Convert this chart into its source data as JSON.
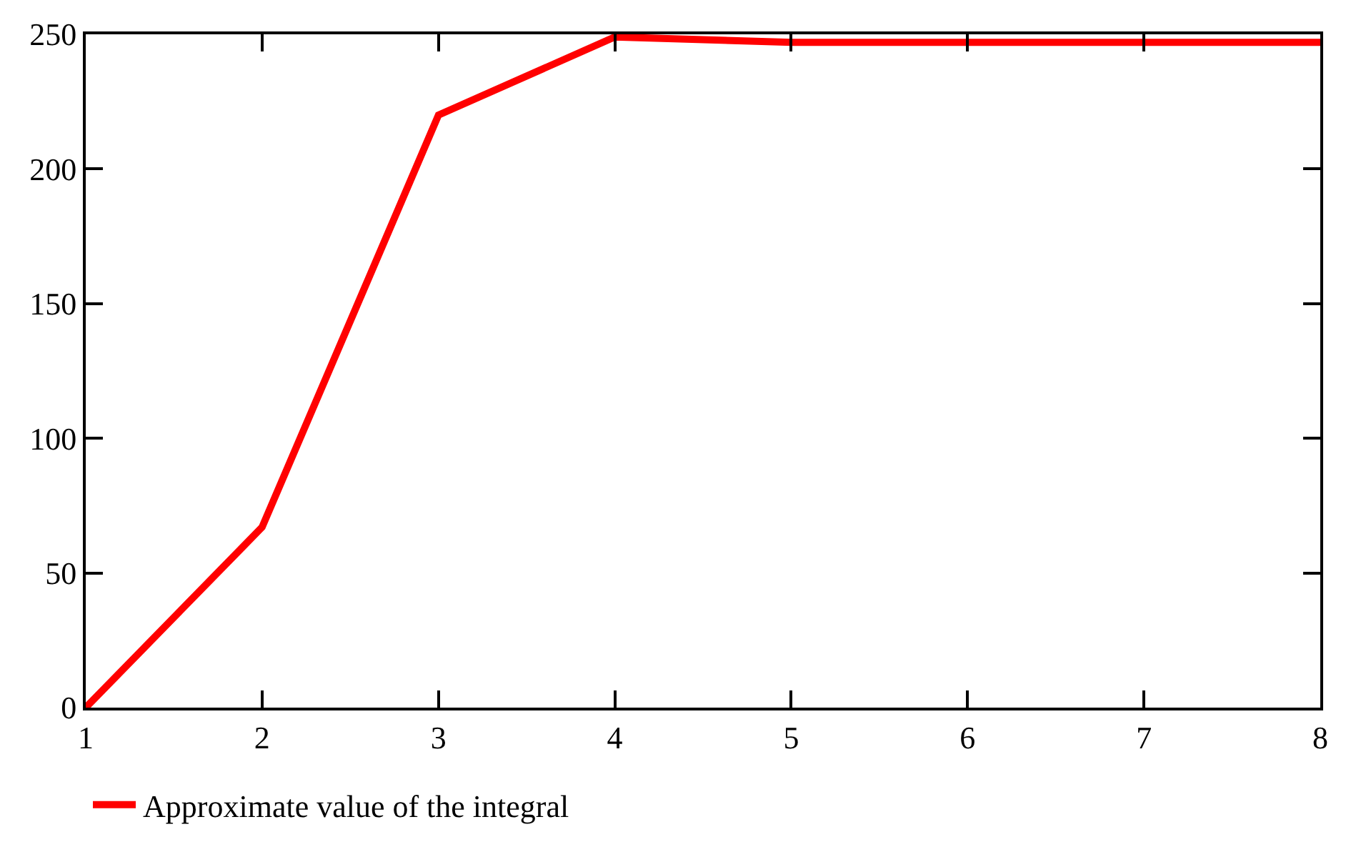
{
  "chart_data": {
    "type": "line",
    "x": [
      1,
      2,
      3,
      4,
      5,
      6,
      7,
      8
    ],
    "series": [
      {
        "name": "Approximate value of the integral",
        "color": "#ff0000",
        "values": [
          0,
          67,
          220,
          249,
          247,
          247,
          247,
          247
        ]
      }
    ],
    "xlim": [
      1,
      8
    ],
    "xticks": [
      1,
      2,
      3,
      4,
      5,
      6,
      7,
      8
    ],
    "ylim": [
      0,
      250
    ],
    "yticks": [
      0,
      50,
      100,
      150,
      200,
      250
    ],
    "grid": false,
    "legend": "bottom left",
    "marker": "none",
    "line_style": "solid"
  }
}
